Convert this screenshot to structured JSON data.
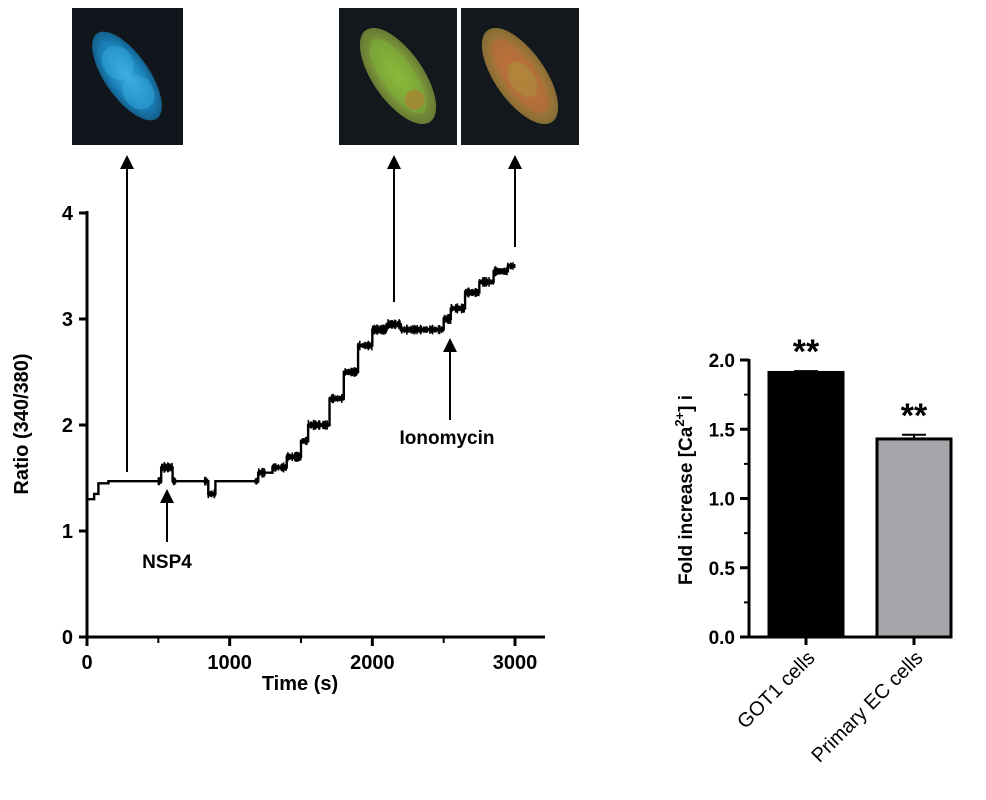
{
  "micrographs": [
    {
      "id": "image-1",
      "dominant_color": "#1f9bd6"
    },
    {
      "id": "image-2",
      "dominant_color": "#8aa84a"
    },
    {
      "id": "image-3",
      "dominant_color": "#b8813e"
    }
  ],
  "chart_data": [
    {
      "type": "line",
      "xlabel": "Time (s)",
      "ylabel": "Ratio (340/380)",
      "xlim": [
        0,
        3000
      ],
      "ylim": [
        0,
        4
      ],
      "xticks": [
        "0",
        "1000",
        "2000",
        "3000"
      ],
      "yticks": [
        "0",
        "1",
        "2",
        "3",
        "4"
      ],
      "grid": false,
      "series": [
        {
          "x": [
            0,
            50,
            80,
            150,
            500,
            520,
            600,
            800,
            850,
            900,
            1100,
            1200,
            1300,
            1400,
            1500,
            1550,
            1650,
            1700,
            1800,
            1900,
            2000,
            2100,
            2200,
            2400,
            2500,
            2550,
            2650,
            2750,
            2850,
            2950,
            3000
          ],
          "values": [
            1.3,
            1.35,
            1.45,
            1.47,
            1.47,
            1.6,
            1.47,
            1.47,
            1.35,
            1.47,
            1.47,
            1.55,
            1.6,
            1.7,
            1.85,
            2.0,
            2.0,
            2.25,
            2.5,
            2.75,
            2.9,
            2.95,
            2.9,
            2.9,
            3.0,
            3.1,
            3.25,
            3.35,
            3.45,
            3.5,
            3.5
          ]
        }
      ],
      "annotations": [
        {
          "text": "NSP4",
          "x": 560
        },
        {
          "text": "Ionomycin",
          "x": 2520
        }
      ]
    },
    {
      "type": "bar",
      "categories": [
        "GOT1 cells",
        "Primary EC cells"
      ],
      "values": [
        1.91,
        1.43
      ],
      "errors": [
        0.01,
        0.03
      ],
      "colors": [
        "#000000",
        "#a6a6aa"
      ],
      "significance": [
        "**",
        "**"
      ],
      "ylabel_main": "Fold increase [Ca",
      "ylabel_sup": "2+",
      "ylabel_tail": "] i",
      "ylim": [
        0,
        2.0
      ],
      "yticks": [
        "0.0",
        "0.5",
        "1.0",
        "1.5",
        "2.0"
      ],
      "grid": false
    }
  ]
}
